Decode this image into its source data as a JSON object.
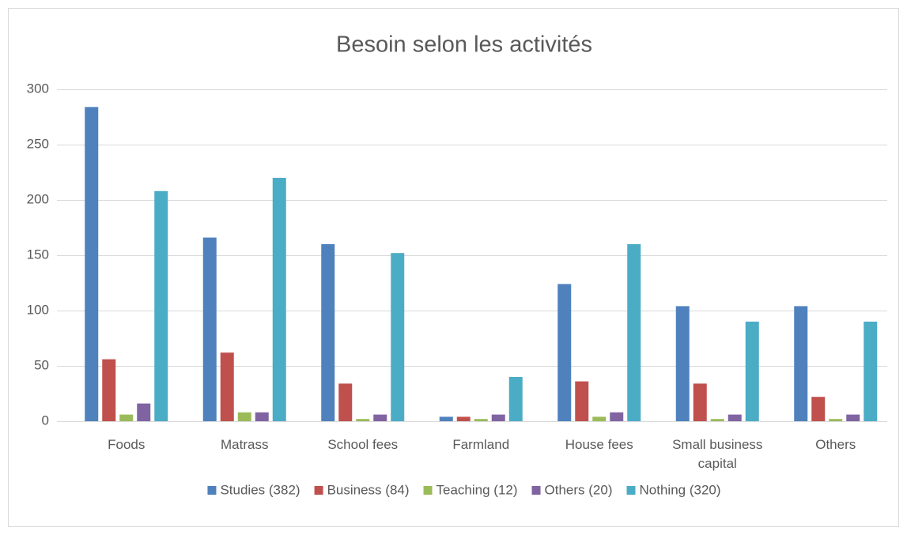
{
  "chart_data": {
    "type": "bar",
    "title": "Besoin selon les activités",
    "categories": [
      "Foods",
      "Matrass",
      "School fees",
      "Farmland",
      "House fees",
      "Small business capital",
      "Others"
    ],
    "series": [
      {
        "name": "Studies (382)",
        "color": "#4f81bd",
        "values": [
          284,
          166,
          160,
          4,
          124,
          104,
          104
        ]
      },
      {
        "name": "Business (84)",
        "color": "#c0504d",
        "values": [
          56,
          62,
          34,
          4,
          36,
          34,
          22
        ]
      },
      {
        "name": "Teaching (12)",
        "color": "#9bbb59",
        "values": [
          6,
          8,
          2,
          2,
          4,
          2,
          2
        ]
      },
      {
        "name": "Others (20)",
        "color": "#8064a2",
        "values": [
          16,
          8,
          6,
          6,
          8,
          6,
          6
        ]
      },
      {
        "name": "Nothing (320)",
        "color": "#4bacc6",
        "values": [
          208,
          220,
          152,
          40,
          160,
          90,
          90
        ]
      }
    ],
    "ylim": [
      0,
      300
    ],
    "yticks": [
      0,
      50,
      100,
      150,
      200,
      250,
      300
    ],
    "grid": true,
    "legend": "bottom"
  }
}
